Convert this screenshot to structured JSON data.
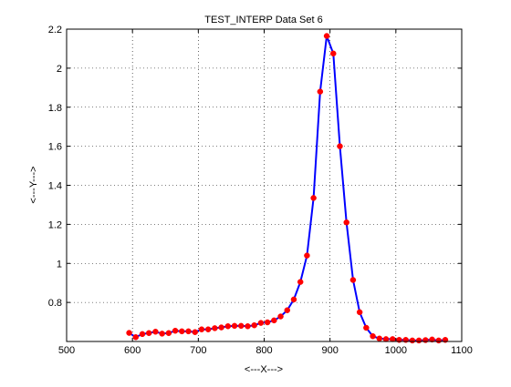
{
  "chart_data": {
    "type": "line",
    "title": "TEST_INTERP Data Set 6",
    "xlabel": "<---X--->",
    "ylabel": "<---Y--->",
    "xlim": [
      500,
      1100
    ],
    "ylim": [
      0.6,
      2.2
    ],
    "xticks": [
      500,
      600,
      700,
      800,
      900,
      1000,
      1100
    ],
    "xtick_labels": [
      "500",
      "600",
      "700",
      "800",
      "900",
      "1000",
      "1100"
    ],
    "yticks": [
      0.8,
      1.0,
      1.2,
      1.4,
      1.6,
      1.8,
      2.0,
      2.2
    ],
    "ytick_labels": [
      "0.8",
      "1",
      "1.2",
      "1.4",
      "1.6",
      "1.8",
      "2",
      "2.2"
    ],
    "grid": true,
    "series": [
      {
        "color": "#0000ff",
        "marker_color": "#ff0000",
        "x": [
          595,
          605,
          615,
          625,
          635,
          645,
          655,
          665,
          675,
          685,
          695,
          705,
          715,
          725,
          735,
          745,
          755,
          765,
          775,
          785,
          795,
          805,
          815,
          825,
          835,
          845,
          855,
          865,
          875,
          885,
          895,
          905,
          915,
          925,
          935,
          945,
          955,
          965,
          975,
          985,
          995,
          1005,
          1015,
          1025,
          1035,
          1045,
          1055,
          1065,
          1075
        ],
        "y": [
          0.644,
          0.622,
          0.638,
          0.643,
          0.65,
          0.64,
          0.643,
          0.655,
          0.652,
          0.652,
          0.648,
          0.662,
          0.662,
          0.668,
          0.672,
          0.678,
          0.68,
          0.68,
          0.678,
          0.683,
          0.695,
          0.698,
          0.708,
          0.728,
          0.76,
          0.815,
          0.905,
          1.04,
          1.335,
          1.88,
          2.165,
          2.075,
          1.6,
          1.21,
          0.915,
          0.75,
          0.67,
          0.627,
          0.615,
          0.612,
          0.612,
          0.608,
          0.608,
          0.605,
          0.605,
          0.607,
          0.61,
          0.605,
          0.608
        ]
      }
    ]
  }
}
